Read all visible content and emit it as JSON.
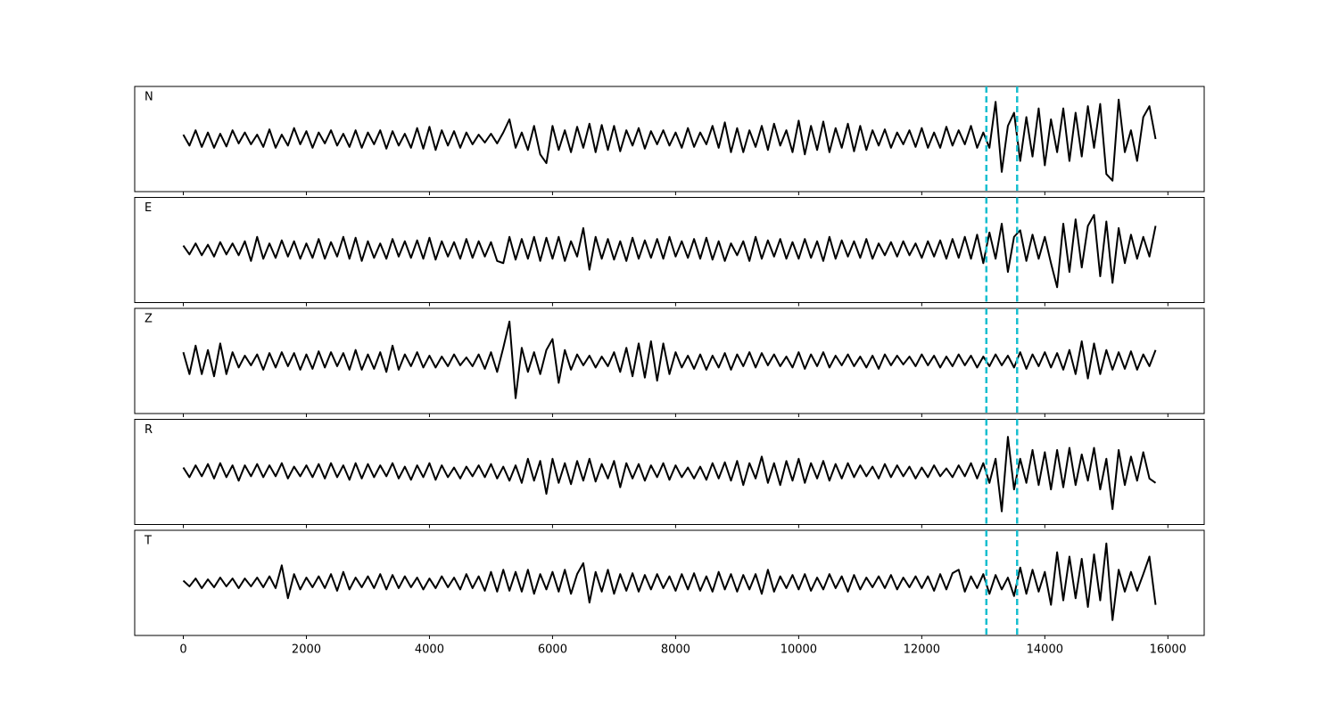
{
  "chart_data": {
    "type": "line",
    "x": [
      0,
      100,
      200,
      300,
      400,
      500,
      600,
      700,
      800,
      900,
      1000,
      1100,
      1200,
      1300,
      1400,
      1500,
      1600,
      1700,
      1800,
      1900,
      2000,
      2100,
      2200,
      2300,
      2400,
      2500,
      2600,
      2700,
      2800,
      2900,
      3000,
      3100,
      3200,
      3300,
      3400,
      3500,
      3600,
      3700,
      3800,
      3900,
      4000,
      4100,
      4200,
      4300,
      4400,
      4500,
      4600,
      4700,
      4800,
      4900,
      5000,
      5100,
      5200,
      5300,
      5400,
      5500,
      5600,
      5700,
      5800,
      5900,
      6000,
      6100,
      6200,
      6300,
      6400,
      6500,
      6600,
      6700,
      6800,
      6900,
      7000,
      7100,
      7200,
      7300,
      7400,
      7500,
      7600,
      7700,
      7800,
      7900,
      8000,
      8100,
      8200,
      8300,
      8400,
      8500,
      8600,
      8700,
      8800,
      8900,
      9000,
      9100,
      9200,
      9300,
      9400,
      9500,
      9600,
      9700,
      9800,
      9900,
      10000,
      10100,
      10200,
      10300,
      10400,
      10500,
      10600,
      10700,
      10800,
      10900,
      11000,
      11100,
      11200,
      11300,
      11400,
      11500,
      11600,
      11700,
      11800,
      11900,
      12000,
      12100,
      12200,
      12300,
      12400,
      12500,
      12600,
      12700,
      12800,
      12900,
      13000,
      13100,
      13200,
      13300,
      13400,
      13500,
      13600,
      13700,
      13800,
      13900,
      14000,
      14100,
      14200,
      14300,
      14400,
      14500,
      14600,
      14700,
      14800,
      14900,
      15000,
      15100,
      15200,
      15300,
      15400,
      15500,
      15600,
      15700,
      15800
    ],
    "series": [
      {
        "name": "N",
        "color": "#000000",
        "values": [
          0.1,
          -0.15,
          0.2,
          -0.18,
          0.15,
          -0.2,
          0.12,
          -0.17,
          0.2,
          -0.1,
          0.15,
          -0.12,
          0.1,
          -0.18,
          0.22,
          -0.2,
          0.1,
          -0.15,
          0.25,
          -0.12,
          0.18,
          -0.2,
          0.15,
          -0.1,
          0.2,
          -0.15,
          0.12,
          -0.18,
          0.2,
          -0.2,
          0.15,
          -0.12,
          0.2,
          -0.22,
          0.18,
          -0.15,
          0.12,
          -0.2,
          0.25,
          -0.22,
          0.28,
          -0.25,
          0.2,
          -0.15,
          0.18,
          -0.2,
          0.15,
          -0.12,
          0.1,
          -0.08,
          0.12,
          -0.1,
          0.15,
          0.45,
          -0.2,
          0.15,
          -0.25,
          0.3,
          -0.35,
          -0.55,
          0.3,
          -0.25,
          0.2,
          -0.3,
          0.28,
          -0.2,
          0.35,
          -0.3,
          0.32,
          -0.25,
          0.3,
          -0.28,
          0.2,
          -0.15,
          0.25,
          -0.22,
          0.18,
          -0.12,
          0.2,
          -0.15,
          0.15,
          -0.2,
          0.25,
          -0.18,
          0.15,
          -0.12,
          0.3,
          -0.2,
          0.38,
          -0.3,
          0.25,
          -0.3,
          0.2,
          -0.18,
          0.3,
          -0.25,
          0.35,
          -0.15,
          0.2,
          -0.3,
          0.42,
          -0.35,
          0.3,
          -0.25,
          0.4,
          -0.3,
          0.25,
          -0.2,
          0.35,
          -0.28,
          0.3,
          -0.25,
          0.2,
          -0.15,
          0.22,
          -0.2,
          0.15,
          -0.12,
          0.2,
          -0.18,
          0.25,
          -0.2,
          0.15,
          -0.2,
          0.28,
          -0.15,
          0.2,
          -0.12,
          0.3,
          -0.2,
          0.15,
          -0.2,
          0.85,
          -0.75,
          0.3,
          0.6,
          -0.5,
          0.5,
          -0.4,
          0.7,
          -0.6,
          0.45,
          -0.3,
          0.7,
          -0.5,
          0.6,
          -0.4,
          0.75,
          -0.2,
          0.8,
          -0.8,
          -0.95,
          0.9,
          -0.3,
          0.2,
          -0.5,
          0.5,
          0.75,
          0.0
        ]
      },
      {
        "name": "E",
        "color": "#000000",
        "values": [
          0.1,
          -0.1,
          0.15,
          -0.12,
          0.12,
          -0.15,
          0.18,
          -0.1,
          0.15,
          -0.12,
          0.2,
          -0.25,
          0.3,
          -0.2,
          0.15,
          -0.18,
          0.22,
          -0.15,
          0.2,
          -0.2,
          0.15,
          -0.18,
          0.25,
          -0.2,
          0.18,
          -0.15,
          0.3,
          -0.2,
          0.28,
          -0.25,
          0.2,
          -0.18,
          0.15,
          -0.2,
          0.25,
          -0.15,
          0.2,
          -0.18,
          0.22,
          -0.2,
          0.28,
          -0.22,
          0.2,
          -0.15,
          0.18,
          -0.2,
          0.25,
          -0.18,
          0.2,
          -0.15,
          0.18,
          -0.25,
          -0.3,
          0.3,
          -0.22,
          0.25,
          -0.2,
          0.3,
          -0.25,
          0.28,
          -0.2,
          0.3,
          -0.25,
          0.2,
          -0.15,
          0.5,
          -0.45,
          0.3,
          -0.2,
          0.25,
          -0.22,
          0.2,
          -0.25,
          0.28,
          -0.2,
          0.22,
          -0.18,
          0.25,
          -0.2,
          0.3,
          -0.15,
          0.2,
          -0.18,
          0.25,
          -0.2,
          0.28,
          -0.22,
          0.2,
          -0.25,
          0.15,
          -0.12,
          0.2,
          -0.25,
          0.3,
          -0.2,
          0.22,
          -0.15,
          0.25,
          -0.2,
          0.18,
          -0.2,
          0.25,
          -0.18,
          0.2,
          -0.25,
          0.3,
          -0.2,
          0.22,
          -0.15,
          0.2,
          -0.18,
          0.25,
          -0.2,
          0.15,
          -0.12,
          0.18,
          -0.15,
          0.2,
          -0.12,
          0.15,
          -0.18,
          0.2,
          -0.15,
          0.22,
          -0.2,
          0.25,
          -0.18,
          0.3,
          -0.2,
          0.35,
          -0.3,
          0.4,
          -0.2,
          0.6,
          -0.5,
          0.3,
          0.45,
          -0.25,
          0.35,
          -0.2,
          0.3,
          -0.3,
          -0.85,
          0.6,
          -0.5,
          0.7,
          -0.4,
          0.55,
          0.8,
          -0.6,
          0.65,
          -0.75,
          0.5,
          -0.3,
          0.35,
          -0.2,
          0.3,
          -0.15,
          0.55
        ]
      },
      {
        "name": "Z",
        "color": "#000000",
        "values": [
          0.2,
          -0.3,
          0.35,
          -0.3,
          0.25,
          -0.35,
          0.4,
          -0.3,
          0.2,
          -0.15,
          0.12,
          -0.1,
          0.15,
          -0.2,
          0.18,
          -0.15,
          0.2,
          -0.12,
          0.18,
          -0.2,
          0.15,
          -0.18,
          0.22,
          -0.15,
          0.2,
          -0.12,
          0.18,
          -0.2,
          0.25,
          -0.2,
          0.15,
          -0.18,
          0.2,
          -0.25,
          0.35,
          -0.2,
          0.15,
          -0.12,
          0.2,
          -0.15,
          0.12,
          -0.15,
          0.1,
          -0.12,
          0.15,
          -0.1,
          0.08,
          -0.12,
          0.15,
          -0.18,
          0.2,
          -0.25,
          0.3,
          0.9,
          -0.85,
          0.3,
          -0.25,
          0.2,
          -0.3,
          0.25,
          0.5,
          -0.5,
          0.25,
          -0.2,
          0.15,
          -0.1,
          0.12,
          -0.15,
          0.1,
          -0.12,
          0.2,
          -0.25,
          0.3,
          -0.35,
          0.4,
          -0.38,
          0.45,
          -0.45,
          0.4,
          -0.3,
          0.2,
          -0.15,
          0.12,
          -0.18,
          0.15,
          -0.2,
          0.12,
          -0.15,
          0.18,
          -0.2,
          0.15,
          -0.12,
          0.2,
          -0.15,
          0.18,
          -0.1,
          0.15,
          -0.12,
          0.1,
          -0.15,
          0.2,
          -0.18,
          0.15,
          -0.12,
          0.2,
          -0.15,
          0.12,
          -0.1,
          0.15,
          -0.12,
          0.1,
          -0.15,
          0.12,
          -0.18,
          0.15,
          -0.1,
          0.12,
          -0.08,
          0.1,
          -0.12,
          0.15,
          -0.1,
          0.12,
          -0.15,
          0.1,
          -0.12,
          0.15,
          -0.1,
          0.12,
          -0.15,
          0.1,
          -0.12,
          0.15,
          -0.1,
          0.12,
          -0.15,
          0.2,
          -0.18,
          0.15,
          -0.12,
          0.2,
          -0.15,
          0.18,
          -0.2,
          0.25,
          -0.3,
          0.45,
          -0.4,
          0.4,
          -0.3,
          0.25,
          -0.2,
          0.2,
          -0.18,
          0.22,
          -0.2,
          0.15,
          -0.12,
          0.25
        ]
      },
      {
        "name": "R",
        "color": "#000000",
        "values": [
          0.1,
          -0.12,
          0.15,
          -0.1,
          0.18,
          -0.15,
          0.2,
          -0.12,
          0.15,
          -0.2,
          0.15,
          -0.1,
          0.18,
          -0.12,
          0.15,
          -0.1,
          0.2,
          -0.15,
          0.12,
          -0.1,
          0.15,
          -0.12,
          0.18,
          -0.15,
          0.2,
          -0.12,
          0.15,
          -0.18,
          0.2,
          -0.15,
          0.18,
          -0.12,
          0.15,
          -0.1,
          0.2,
          -0.15,
          0.12,
          -0.18,
          0.15,
          -0.12,
          0.2,
          -0.18,
          0.15,
          -0.12,
          0.1,
          -0.15,
          0.12,
          -0.1,
          0.15,
          -0.12,
          0.18,
          -0.15,
          0.12,
          -0.2,
          0.15,
          -0.25,
          0.3,
          -0.2,
          0.25,
          -0.5,
          0.3,
          -0.25,
          0.2,
          -0.28,
          0.25,
          -0.2,
          0.3,
          -0.22,
          0.18,
          -0.15,
          0.25,
          -0.35,
          0.2,
          -0.15,
          0.18,
          -0.2,
          0.15,
          -0.12,
          0.2,
          -0.18,
          0.15,
          -0.12,
          0.1,
          -0.15,
          0.12,
          -0.18,
          0.2,
          -0.15,
          0.22,
          -0.2,
          0.25,
          -0.3,
          0.2,
          -0.15,
          0.35,
          -0.25,
          0.2,
          -0.3,
          0.25,
          -0.2,
          0.3,
          -0.25,
          0.2,
          -0.15,
          0.25,
          -0.2,
          0.18,
          -0.15,
          0.2,
          -0.12,
          0.15,
          -0.1,
          0.12,
          -0.15,
          0.18,
          -0.12,
          0.15,
          -0.1,
          0.12,
          -0.15,
          0.1,
          -0.12,
          0.15,
          -0.1,
          0.08,
          -0.12,
          0.15,
          -0.1,
          0.2,
          -0.15,
          0.2,
          -0.25,
          0.3,
          -0.9,
          0.8,
          -0.4,
          0.3,
          -0.25,
          0.5,
          -0.3,
          0.45,
          -0.4,
          0.5,
          -0.35,
          0.55,
          -0.3,
          0.4,
          -0.2,
          0.55,
          -0.4,
          0.3,
          -0.85,
          0.5,
          -0.3,
          0.35,
          -0.2,
          0.45,
          -0.15,
          -0.25
        ]
      },
      {
        "name": "T",
        "color": "#000000",
        "values": [
          0.05,
          -0.08,
          0.1,
          -0.12,
          0.08,
          -0.1,
          0.12,
          -0.08,
          0.1,
          -0.12,
          0.1,
          -0.08,
          0.12,
          -0.1,
          0.15,
          -0.12,
          0.4,
          -0.35,
          0.2,
          -0.15,
          0.12,
          -0.1,
          0.15,
          -0.12,
          0.2,
          -0.18,
          0.25,
          -0.15,
          0.12,
          -0.1,
          0.15,
          -0.12,
          0.2,
          -0.15,
          0.18,
          -0.12,
          0.15,
          -0.1,
          0.12,
          -0.15,
          0.1,
          -0.12,
          0.15,
          -0.1,
          0.12,
          -0.15,
          0.2,
          -0.12,
          0.15,
          -0.18,
          0.25,
          -0.2,
          0.3,
          -0.18,
          0.25,
          -0.2,
          0.3,
          -0.25,
          0.2,
          -0.15,
          0.25,
          -0.2,
          0.3,
          -0.25,
          0.2,
          0.45,
          -0.45,
          0.25,
          -0.2,
          0.3,
          -0.25,
          0.2,
          -0.18,
          0.22,
          -0.2,
          0.18,
          -0.15,
          0.2,
          -0.12,
          0.15,
          -0.18,
          0.2,
          -0.15,
          0.22,
          -0.18,
          0.15,
          -0.2,
          0.25,
          -0.15,
          0.2,
          -0.2,
          0.18,
          -0.15,
          0.2,
          -0.25,
          0.3,
          -0.2,
          0.15,
          -0.12,
          0.18,
          -0.15,
          0.2,
          -0.18,
          0.12,
          -0.15,
          0.2,
          -0.12,
          0.15,
          -0.2,
          0.18,
          -0.15,
          0.12,
          -0.1,
          0.15,
          -0.12,
          0.18,
          -0.15,
          0.12,
          -0.1,
          0.15,
          -0.12,
          0.15,
          -0.18,
          0.2,
          -0.15,
          0.22,
          0.3,
          -0.2,
          0.15,
          -0.12,
          0.2,
          -0.25,
          0.18,
          -0.15,
          0.12,
          -0.3,
          0.35,
          -0.25,
          0.3,
          -0.2,
          0.25,
          -0.5,
          0.7,
          -0.4,
          0.6,
          -0.35,
          0.55,
          -0.55,
          0.65,
          -0.4,
          0.9,
          -0.85,
          0.3,
          -0.2,
          0.25,
          -0.18,
          0.2,
          0.6,
          -0.5
        ]
      }
    ],
    "xlim": [
      -790,
      16590
    ],
    "xticks": [
      0,
      2000,
      4000,
      6000,
      8000,
      10000,
      12000,
      14000,
      16000
    ],
    "ylim": [
      -1.2,
      1.2
    ],
    "markers": [
      13050,
      13550
    ],
    "marker_color": "#17becf"
  }
}
